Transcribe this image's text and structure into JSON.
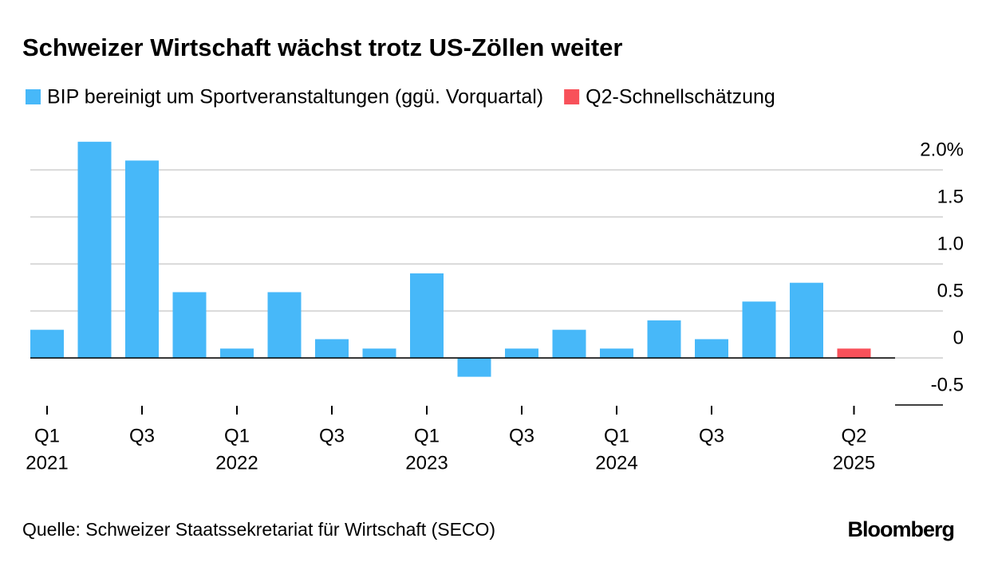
{
  "chart_data": {
    "type": "bar",
    "title": "Schweizer Wirtschaft wächst trotz US-Zöllen weiter",
    "source": "Quelle: Schweizer Staatssekretariat für Wirtschaft (SECO)",
    "brand": "Bloomberg",
    "categories": [
      [
        "Q1",
        "2021"
      ],
      null,
      [
        "Q3"
      ],
      null,
      [
        "Q1",
        "2022"
      ],
      null,
      [
        "Q3"
      ],
      null,
      [
        "Q1",
        "2023"
      ],
      null,
      [
        "Q3"
      ],
      null,
      [
        "Q1",
        "2024"
      ],
      null,
      [
        "Q3"
      ],
      null,
      null,
      [
        "Q2",
        "2025"
      ]
    ],
    "series": [
      {
        "name": "BIP bereinigt um Sportveranstaltungen (ggü. Vorquartal)",
        "color": "#47b8f9",
        "values": [
          0.3,
          2.3,
          2.1,
          0.7,
          0.1,
          0.7,
          0.2,
          0.1,
          0.9,
          -0.2,
          0.1,
          0.3,
          0.1,
          0.4,
          0.2,
          0.6,
          0.8,
          null
        ]
      },
      {
        "name": "Q2-Schnellschätzung",
        "color": "#f8515a",
        "values": [
          null,
          null,
          null,
          null,
          null,
          null,
          null,
          null,
          null,
          null,
          null,
          null,
          null,
          null,
          null,
          null,
          null,
          0.1
        ]
      }
    ],
    "ylim": [
      -0.5,
      2.4
    ],
    "yticks": [
      {
        "value": 2,
        "label": "2.0%"
      },
      1.5,
      {
        "value": 1,
        "label": "1.0"
      },
      0.5,
      0,
      -0.5
    ],
    "grid": true,
    "legend": "top-left"
  }
}
